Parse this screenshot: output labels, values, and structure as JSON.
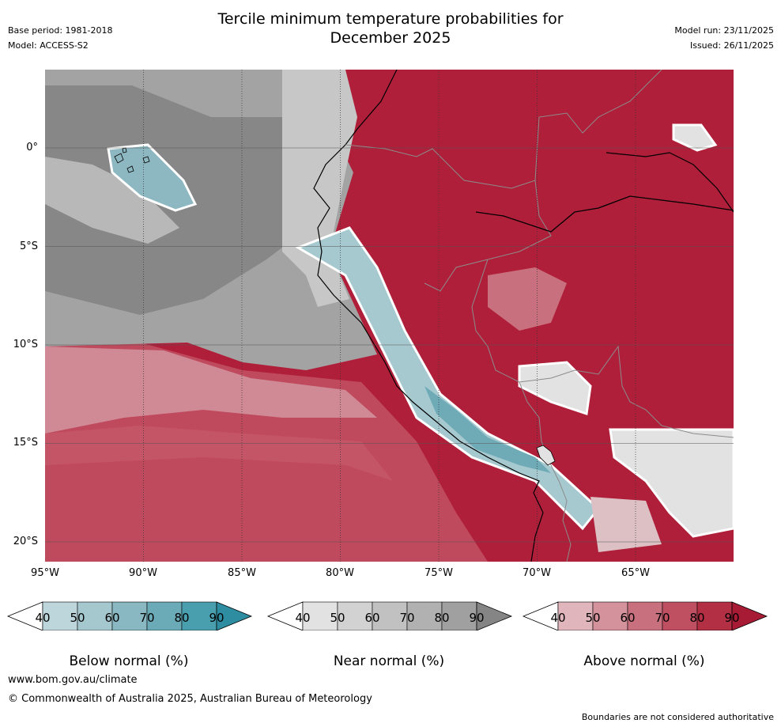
{
  "header": {
    "title_line1": "Tercile minimum temperature probabilities for",
    "title_line2": "December 2025",
    "base_period": "Base period: 1981-2018",
    "model": "Model: ACCESS-S2",
    "model_run": "Model run: 23/11/2025",
    "issued": "Issued: 26/11/2025"
  },
  "axes": {
    "lat_labels": [
      "0°",
      "5°S",
      "10°S",
      "15°S",
      "20°S"
    ],
    "lon_labels": [
      "95°W",
      "90°W",
      "85°W",
      "80°W",
      "75°W",
      "70°W",
      "65°W"
    ]
  },
  "colorbars": {
    "below": {
      "label": "Below normal (%)",
      "ticks": [
        "40",
        "50",
        "60",
        "70",
        "80",
        "90"
      ],
      "colors": [
        "#ffffff",
        "#bdd6dc",
        "#a5c8cf",
        "#89b8c3",
        "#6babb7",
        "#4a9fae",
        "#2e8da0"
      ]
    },
    "near": {
      "label": "Near normal (%)",
      "ticks": [
        "40",
        "50",
        "60",
        "70",
        "80",
        "90"
      ],
      "colors": [
        "#ffffff",
        "#e2e2e2",
        "#d2d2d2",
        "#c1c1c1",
        "#b1b1b1",
        "#a0a0a0",
        "#858585"
      ]
    },
    "above": {
      "label": "Above normal (%)",
      "ticks": [
        "40",
        "50",
        "60",
        "70",
        "80",
        "90"
      ],
      "colors": [
        "#ffffff",
        "#e0b5bb",
        "#d4929c",
        "#c9707e",
        "#be5062",
        "#b22f44",
        "#a81b35"
      ]
    }
  },
  "footer": {
    "website": "www.bom.gov.au/climate",
    "copyright": "© Commonwealth of Australia 2025, Australian Bureau of Meteorology",
    "disclaimer": "Boundaries are not considered authoritative"
  }
}
